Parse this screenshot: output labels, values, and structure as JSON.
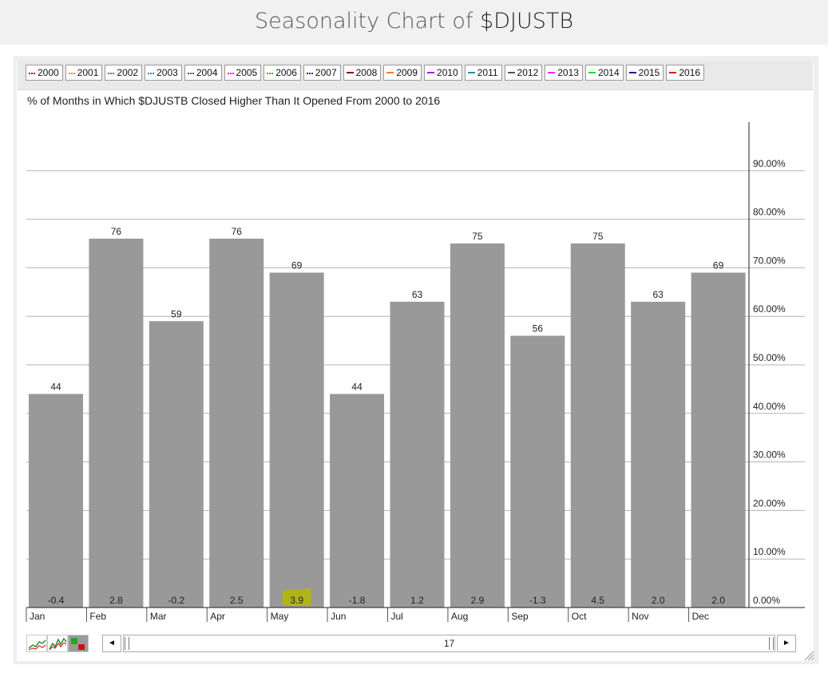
{
  "header": {
    "title_prefix": "Seasonality Chart of ",
    "title_symbol": "$DJUSTB"
  },
  "legend": [
    {
      "label": "2000",
      "color": "#8b1a4a",
      "style": "dot"
    },
    {
      "label": "2001",
      "color": "#f07f2a",
      "style": "dot"
    },
    {
      "label": "2002",
      "color": "#a040d0",
      "style": "dot"
    },
    {
      "label": "2003",
      "color": "#1f8fb0",
      "style": "dot"
    },
    {
      "label": "2004",
      "color": "#555555",
      "style": "dot"
    },
    {
      "label": "2005",
      "color": "#e020e0",
      "style": "dot"
    },
    {
      "label": "2006",
      "color": "#20c020",
      "style": "dot"
    },
    {
      "label": "2007",
      "color": "#20208f",
      "style": "dot"
    },
    {
      "label": "2008",
      "color": "#8b0000",
      "style": "solid"
    },
    {
      "label": "2009",
      "color": "#f07f2a",
      "style": "solid"
    },
    {
      "label": "2010",
      "color": "#a020f0",
      "style": "solid"
    },
    {
      "label": "2011",
      "color": "#1f8fb0",
      "style": "solid"
    },
    {
      "label": "2012",
      "color": "#555555",
      "style": "solid"
    },
    {
      "label": "2013",
      "color": "#ff20ff",
      "style": "solid"
    },
    {
      "label": "2014",
      "color": "#20e020",
      "style": "solid"
    },
    {
      "label": "2015",
      "color": "#1a1aa0",
      "style": "solid"
    },
    {
      "label": "2016",
      "color": "#e01010",
      "style": "solid"
    }
  ],
  "chart_data": {
    "type": "bar",
    "title": "% of Months in Which $DJUSTB Closed Higher Than It Opened From 2000 to 2016",
    "categories": [
      "Jan",
      "Feb",
      "Mar",
      "Apr",
      "May",
      "Jun",
      "Jul",
      "Aug",
      "Sep",
      "Oct",
      "Nov",
      "Dec"
    ],
    "values": [
      44,
      76,
      59,
      76,
      69,
      44,
      63,
      75,
      56,
      75,
      63,
      69
    ],
    "value_labels": [
      "44",
      "76",
      "59",
      "76",
      "69",
      "44",
      "63",
      "75",
      "56",
      "75",
      "63",
      "69"
    ],
    "avg_returns": [
      "-0.4",
      "2.8",
      "-0.2",
      "2.5",
      "3.9",
      "-1.8",
      "1.2",
      "2.9",
      "-1.3",
      "4.5",
      "2.0",
      "2.0"
    ],
    "highlight_index": 4,
    "highlight_color": "#b5b800",
    "bar_color": "#999999",
    "ylim": [
      0,
      100
    ],
    "yticks": [
      0,
      10,
      20,
      30,
      40,
      50,
      60,
      70,
      80,
      90
    ],
    "ytick_labels": [
      "0.00%",
      "10.00%",
      "20.00%",
      "30.00%",
      "40.00%",
      "50.00%",
      "60.00%",
      "70.00%",
      "80.00%",
      "90.00%"
    ],
    "y_axis_position": "right",
    "grid": true
  },
  "controls": {
    "scroll_value": "17",
    "left_arrow": "◄",
    "right_arrow": "►",
    "icons": [
      "line-chart-icon",
      "performance-chart-icon",
      "seasonality-bar-icon"
    ]
  }
}
